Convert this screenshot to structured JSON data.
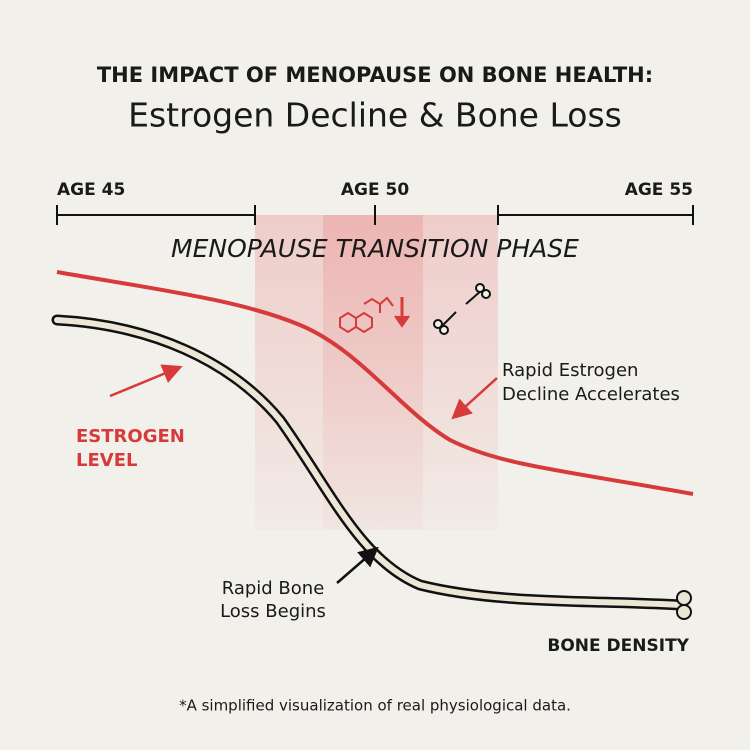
{
  "header": {
    "kicker": "THE IMPACT OF MENOPAUSE ON BONE HEALTH:",
    "title": "Estrogen Decline & Bone Loss"
  },
  "timeline": {
    "labels": [
      "AGE 45",
      "AGE 50",
      "AGE 55"
    ],
    "phase": "MENOPAUSE TRANSITION PHASE"
  },
  "annotations": {
    "estrogen_level": [
      "ESTROGEN",
      "LEVEL"
    ],
    "estrogen_decline": [
      "Rapid Estrogen",
      "Decline Accelerates"
    ],
    "bone_loss": [
      "Rapid Bone",
      "Loss Begins"
    ],
    "bone_density": "BONE DENSITY"
  },
  "footnote": "*A simplified visualization of real physiological data."
}
